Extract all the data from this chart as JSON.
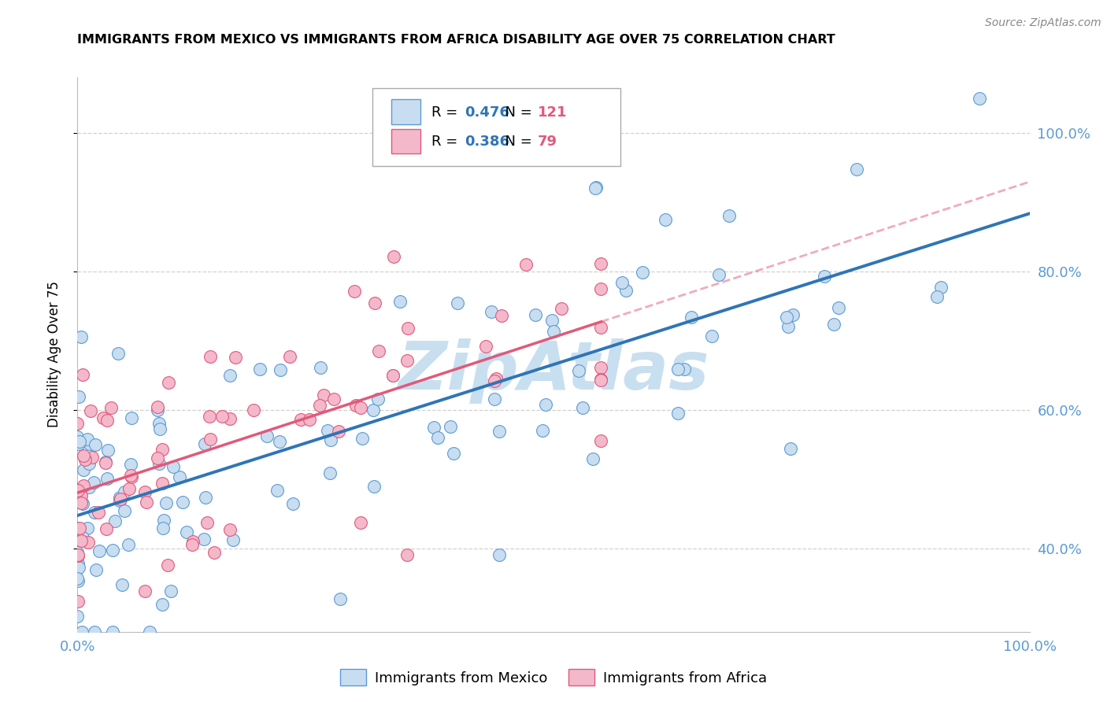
{
  "title": "IMMIGRANTS FROM MEXICO VS IMMIGRANTS FROM AFRICA DISABILITY AGE OVER 75 CORRELATION CHART",
  "source": "Source: ZipAtlas.com",
  "ylabel": "Disability Age Over 75",
  "legend_mexico": "Immigrants from Mexico",
  "legend_africa": "Immigrants from Africa",
  "R_mexico": 0.476,
  "N_mexico": 121,
  "R_africa": 0.386,
  "N_africa": 79,
  "color_mexico_fill": "#c8ddf0",
  "color_mexico_edge": "#5b9bd5",
  "color_africa_fill": "#f4b8cb",
  "color_africa_edge": "#e05a7a",
  "color_trend_mexico": "#2e75b6",
  "color_trend_africa": "#e05a7a",
  "watermark_color": "#c8dff0",
  "watermark_text": "ZipAtlas",
  "xlim": [
    0,
    1
  ],
  "ylim": [
    0.28,
    1.08
  ],
  "yticks": [
    0.4,
    0.6,
    0.8,
    1.0
  ],
  "ytick_labels": [
    "40.0%",
    "60.0%",
    "80.0%",
    "100.0%"
  ],
  "xtick_labels": [
    "0.0%",
    "100.0%"
  ],
  "legend_R_color": "#2e75b6",
  "legend_N_color": "#e05a7a"
}
